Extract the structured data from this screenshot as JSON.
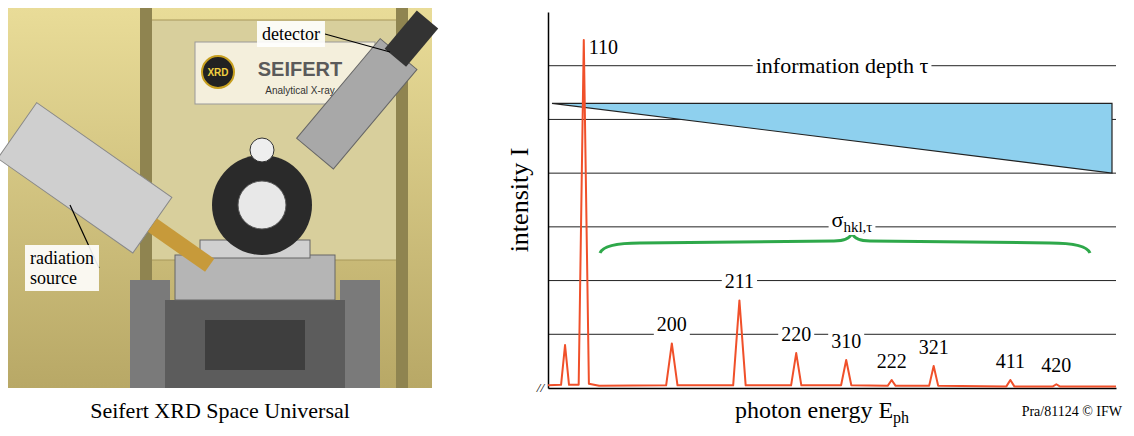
{
  "photo": {
    "caption": "Seifert XRD Space Universal",
    "callouts": [
      {
        "text": "detector"
      },
      {
        "text": "radiation source"
      }
    ],
    "sign": {
      "brand": "SEIFERT",
      "logo": "XRD",
      "subtitle": "Analytical X-ray"
    }
  },
  "chart_data": {
    "type": "line",
    "y_label": "intensity I",
    "x_label": {
      "text": "photon energy E",
      "subscript": "ph"
    },
    "axis_break": "//",
    "credit": "Pra/81124 © IFW",
    "information_depth": "information depth τ",
    "sigma": {
      "symbol": "σ",
      "subscript": "hkl,τ"
    },
    "x": [
      0,
      2.3,
      3.0,
      3.7,
      5.4,
      6.3,
      7.2,
      9,
      20.8,
      21.8,
      22.8,
      32.6,
      33.7,
      34.8,
      42.8,
      43.7,
      44.6,
      51.6,
      52.5,
      53.4,
      59.8,
      60.5,
      61.2,
      67.1,
      67.9,
      68.7,
      80.7,
      81.4,
      82.1,
      88.9,
      89.5,
      90.1,
      100
    ],
    "series": [
      {
        "color": "#f0502a",
        "values": [
          0.05,
          0.06,
          0.8,
          0.06,
          0.06,
          6.48,
          0.08,
          0.04,
          0.05,
          0.83,
          0.05,
          0.05,
          1.63,
          0.05,
          0.05,
          0.65,
          0.05,
          0.05,
          0.52,
          0.05,
          0.04,
          0.15,
          0.04,
          0.04,
          0.41,
          0.04,
          0.03,
          0.15,
          0.03,
          0.03,
          0.07,
          0.03,
          0.03
        ]
      }
    ],
    "peak_labels": [
      {
        "text": "110",
        "x": 6.3,
        "y": 6.48
      },
      {
        "text": "200",
        "x": 21.8,
        "y": 0.83
      },
      {
        "text": "211",
        "x": 33.7,
        "y": 1.63
      },
      {
        "text": "220",
        "x": 43.7,
        "y": 0.65
      },
      {
        "text": "310",
        "x": 52.5,
        "y": 0.52
      },
      {
        "text": "222",
        "x": 60.5,
        "y": 0.15
      },
      {
        "text": "321",
        "x": 67.9,
        "y": 0.41
      },
      {
        "text": "411",
        "x": 81.4,
        "y": 0.15
      },
      {
        "text": "420",
        "x": 89.5,
        "y": 0.07
      }
    ],
    "xlim": [
      0,
      100
    ],
    "ylim": [
      0,
      7
    ],
    "yticks": [
      1,
      2,
      3,
      4,
      5,
      6
    ],
    "grid": true,
    "tick_labels": false
  }
}
